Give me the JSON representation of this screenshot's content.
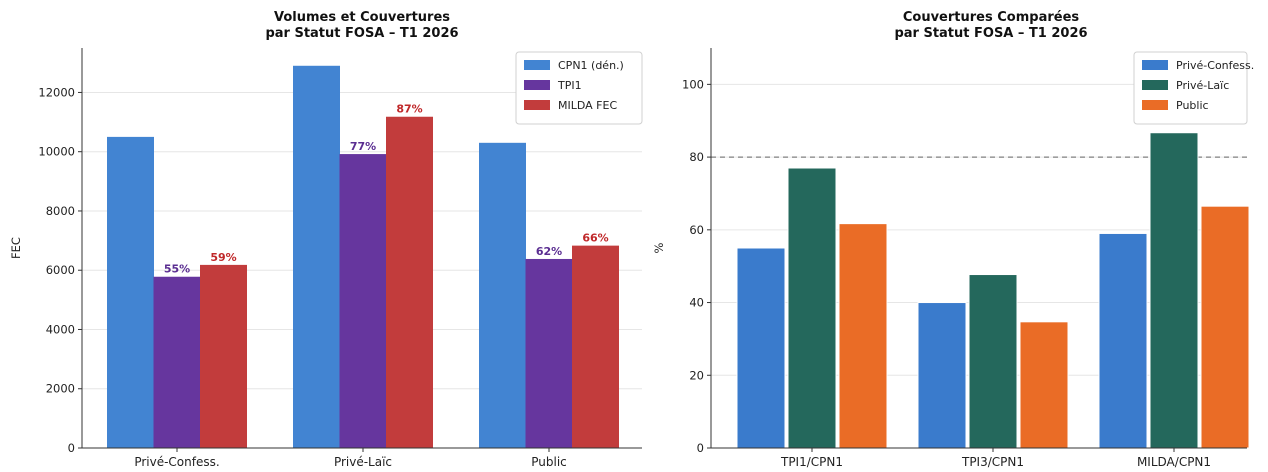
{
  "chart_data": [
    {
      "type": "bar",
      "title_line1": "Volumes et Couvertures",
      "title_line2": "par Statut FOSA – T1 2026",
      "xlabel": "",
      "ylabel": "FEC",
      "ylim": [
        0,
        13500
      ],
      "yticks": [
        0,
        2000,
        4000,
        6000,
        8000,
        10000,
        12000
      ],
      "grid": "horizontal",
      "legend": "top-right",
      "categories": [
        "Privé-Confess.",
        "Privé-Laïc",
        "Public"
      ],
      "series": [
        {
          "name": "CPN1 (dén.)",
          "color": "#4284d2",
          "values": [
            10500,
            12900,
            10300
          ],
          "labels": [
            "",
            "",
            ""
          ]
        },
        {
          "name": "TPI1",
          "color": "#66369e",
          "values": [
            5780,
            9920,
            6380
          ],
          "labels": [
            "55%",
            "77%",
            "62%"
          ],
          "label_color": "#5a2d91"
        },
        {
          "name": "MILDA FEC",
          "color": "#c23c3c",
          "values": [
            6180,
            11180,
            6830
          ],
          "labels": [
            "59%",
            "87%",
            "66%"
          ],
          "label_color": "#c0282a"
        }
      ]
    },
    {
      "type": "bar",
      "title_line1": "Couvertures Comparées",
      "title_line2": "par Statut FOSA – T1 2026",
      "xlabel": "",
      "ylabel": "%",
      "ylim": [
        0,
        110
      ],
      "yticks": [
        0,
        20,
        40,
        60,
        80,
        100
      ],
      "grid": "horizontal",
      "reference_line": 80,
      "legend": "top-right",
      "categories": [
        "TPI1/CPN1",
        "TPI3/CPN1",
        "MILDA/CPN1"
      ],
      "series": [
        {
          "name": "Privé-Confess.",
          "color": "#3a7bcc",
          "values": [
            55,
            40,
            59
          ]
        },
        {
          "name": "Privé-Laïc",
          "color": "#24685c",
          "values": [
            77,
            47.7,
            86.7
          ]
        },
        {
          "name": "Public",
          "color": "#ea6c26",
          "values": [
            61.7,
            34.7,
            66.5
          ]
        }
      ]
    }
  ]
}
